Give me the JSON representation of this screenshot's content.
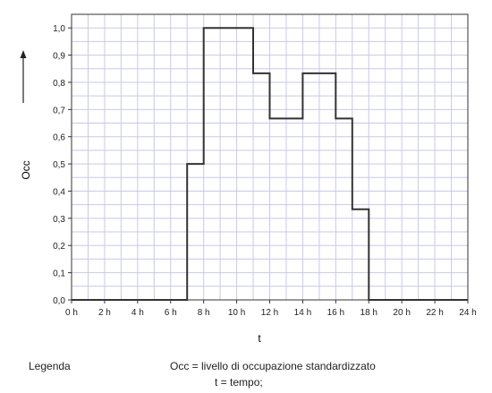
{
  "chart_data": {
    "type": "line",
    "step": true,
    "xlabel": "t",
    "ylabel": "Occ",
    "x_ticks": [
      "0 h",
      "2 h",
      "4 h",
      "6 h",
      "8 h",
      "10 h",
      "12 h",
      "14 h",
      "16 h",
      "18 h",
      "20 h",
      "22 h",
      "24 h"
    ],
    "y_ticks": [
      "0,0",
      "0,1",
      "0,2",
      "0,3",
      "0,4",
      "0,5",
      "0,6",
      "0,7",
      "0,8",
      "0,9",
      "1,0"
    ],
    "xlim": [
      0,
      24
    ],
    "ylim": [
      0,
      1.05
    ],
    "grid": true,
    "series": [
      {
        "x": [
          0,
          7,
          7,
          8,
          8,
          11,
          11,
          12,
          12,
          14,
          14,
          16,
          16,
          17,
          17,
          18,
          18,
          24
        ],
        "y": [
          0,
          0,
          0.5,
          0.5,
          1.0,
          1.0,
          0.833,
          0.833,
          0.667,
          0.667,
          0.833,
          0.833,
          0.667,
          0.667,
          0.333,
          0.333,
          0,
          0
        ]
      }
    ]
  },
  "legend": {
    "title": "Legenda",
    "line1": "Occ = livello di occupazione standardizzato",
    "line2": "t = tempo;"
  }
}
